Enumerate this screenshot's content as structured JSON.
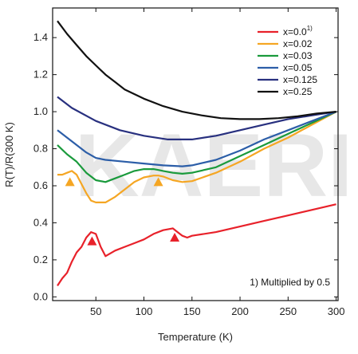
{
  "chart_data": {
    "type": "line",
    "title": "",
    "xlabel": "Temperature (K)",
    "ylabel": "R(T)/R(300 K)",
    "xlim": [
      5,
      302
    ],
    "ylim": [
      -0.02,
      1.56
    ],
    "xticks": [
      50,
      100,
      150,
      200,
      250,
      300
    ],
    "yticks": [
      0.0,
      0.2,
      0.4,
      0.6,
      0.8,
      1.0,
      1.2,
      1.4
    ],
    "grid": false,
    "legend_position": "top-right",
    "watermark": "KAERI",
    "note": "1) Multiplied by 0.5",
    "series": [
      {
        "name": "x=0.0",
        "superscript": "1)",
        "color": "#e8212a",
        "x": [
          10,
          15,
          20,
          25,
          30,
          35,
          40,
          45,
          50,
          55,
          60,
          70,
          80,
          90,
          100,
          110,
          120,
          130,
          135,
          140,
          145,
          150,
          175,
          200,
          225,
          250,
          275,
          300
        ],
        "y": [
          0.06,
          0.1,
          0.13,
          0.19,
          0.24,
          0.27,
          0.32,
          0.35,
          0.34,
          0.27,
          0.22,
          0.25,
          0.27,
          0.29,
          0.31,
          0.34,
          0.36,
          0.37,
          0.35,
          0.33,
          0.32,
          0.33,
          0.35,
          0.38,
          0.41,
          0.44,
          0.47,
          0.5
        ]
      },
      {
        "name": "x=0.02",
        "color": "#f5a623",
        "x": [
          10,
          15,
          20,
          25,
          30,
          35,
          40,
          45,
          50,
          55,
          60,
          70,
          80,
          90,
          100,
          110,
          115,
          120,
          130,
          140,
          150,
          175,
          200,
          225,
          250,
          275,
          300
        ],
        "y": [
          0.66,
          0.66,
          0.67,
          0.68,
          0.66,
          0.61,
          0.56,
          0.52,
          0.51,
          0.51,
          0.51,
          0.54,
          0.58,
          0.62,
          0.645,
          0.655,
          0.655,
          0.65,
          0.63,
          0.62,
          0.625,
          0.67,
          0.73,
          0.8,
          0.86,
          0.93,
          1.0
        ]
      },
      {
        "name": "x=0.03",
        "color": "#1a9a3c",
        "x": [
          10,
          20,
          30,
          40,
          50,
          60,
          70,
          80,
          90,
          100,
          110,
          115,
          120,
          130,
          140,
          150,
          175,
          200,
          225,
          250,
          275,
          300
        ],
        "y": [
          0.82,
          0.77,
          0.73,
          0.67,
          0.63,
          0.62,
          0.64,
          0.66,
          0.68,
          0.69,
          0.69,
          0.685,
          0.68,
          0.67,
          0.665,
          0.67,
          0.7,
          0.76,
          0.82,
          0.88,
          0.94,
          1.0
        ]
      },
      {
        "name": "x=0.05",
        "color": "#2c5ea8",
        "x": [
          10,
          20,
          30,
          40,
          50,
          60,
          80,
          100,
          120,
          140,
          150,
          175,
          200,
          225,
          250,
          275,
          300
        ],
        "y": [
          0.9,
          0.86,
          0.82,
          0.78,
          0.75,
          0.74,
          0.73,
          0.72,
          0.71,
          0.705,
          0.71,
          0.74,
          0.79,
          0.85,
          0.9,
          0.95,
          1.0
        ]
      },
      {
        "name": "x=0.125",
        "color": "#28307f",
        "x": [
          10,
          25,
          50,
          75,
          100,
          125,
          150,
          175,
          200,
          225,
          250,
          275,
          300
        ],
        "y": [
          1.08,
          1.02,
          0.95,
          0.9,
          0.87,
          0.85,
          0.85,
          0.87,
          0.9,
          0.93,
          0.96,
          0.98,
          1.0
        ]
      },
      {
        "name": "x=0.25",
        "color": "#111111",
        "x": [
          10,
          20,
          30,
          40,
          50,
          60,
          70,
          80,
          100,
          120,
          140,
          160,
          180,
          200,
          220,
          240,
          260,
          280,
          300
        ],
        "y": [
          1.49,
          1.42,
          1.36,
          1.3,
          1.25,
          1.2,
          1.16,
          1.12,
          1.07,
          1.03,
          1.0,
          0.98,
          0.965,
          0.96,
          0.96,
          0.965,
          0.975,
          0.99,
          1.0
        ]
      }
    ],
    "annotations": [
      {
        "label": "triangle-marker",
        "x": 23,
        "y": 0.62,
        "color": "#f5a623"
      },
      {
        "label": "triangle-marker",
        "x": 115,
        "y": 0.62,
        "color": "#f5a623"
      },
      {
        "label": "triangle-marker",
        "x": 46,
        "y": 0.3,
        "color": "#e8212a"
      },
      {
        "label": "triangle-marker",
        "x": 132,
        "y": 0.32,
        "color": "#e8212a"
      }
    ]
  }
}
